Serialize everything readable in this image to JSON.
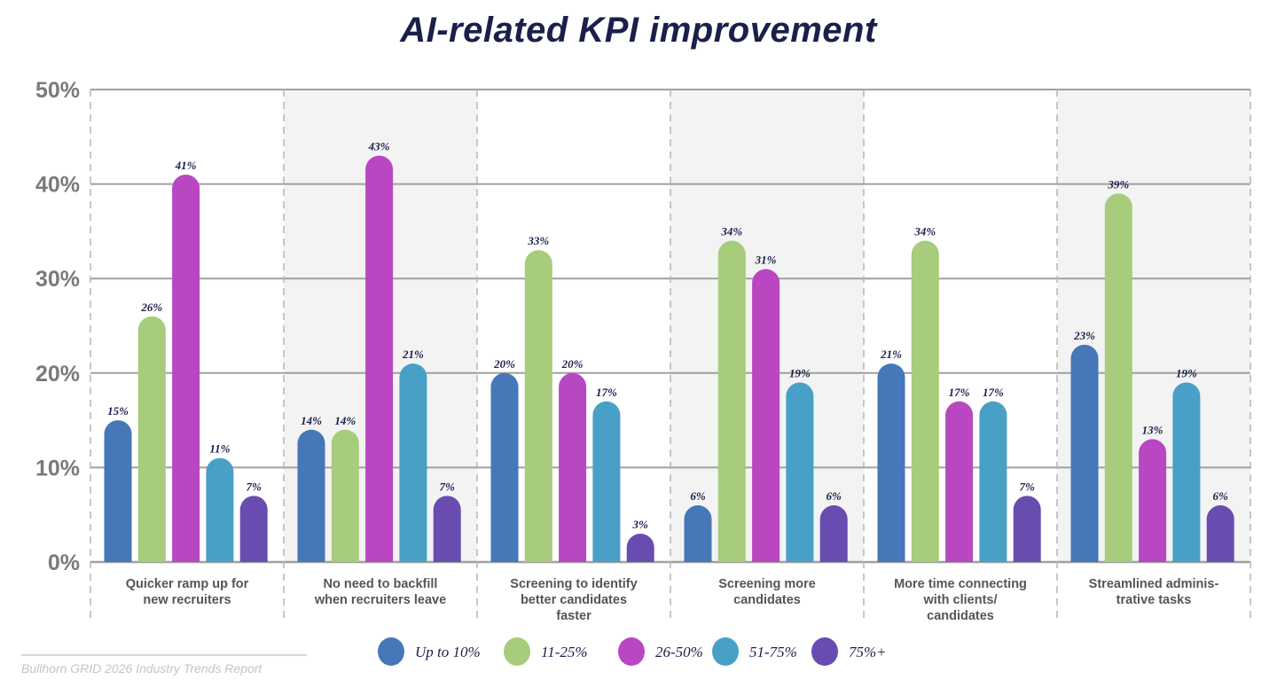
{
  "chart_data": {
    "type": "bar",
    "title": "AI-related KPI improvement",
    "categories": [
      [
        "Quicker ramp up for",
        "new recruiters"
      ],
      [
        "No need to backfill",
        "when recruiters leave"
      ],
      [
        "Screening to identify",
        "better candidates",
        "faster"
      ],
      [
        "Screening more",
        "candidates"
      ],
      [
        "More time connecting",
        "with clients/",
        "candidates"
      ],
      [
        "Streamlined adminis-",
        "trative tasks"
      ]
    ],
    "series": [
      {
        "name": "Up to 10%",
        "color": "#4677b8",
        "values": [
          15,
          14,
          20,
          6,
          21,
          23
        ]
      },
      {
        "name": "11-25%",
        "color": "#a6cc7c",
        "values": [
          26,
          14,
          33,
          34,
          34,
          39
        ]
      },
      {
        "name": "26-50%",
        "color": "#b847c1",
        "values": [
          41,
          43,
          20,
          31,
          17,
          13
        ]
      },
      {
        "name": "51-75%",
        "color": "#48a0c6",
        "values": [
          11,
          21,
          17,
          19,
          17,
          19
        ]
      },
      {
        "name": "75%+",
        "color": "#684cb0",
        "values": [
          7,
          7,
          3,
          6,
          7,
          6
        ]
      }
    ],
    "yticks": [
      "0%",
      "10%",
      "20%",
      "30%",
      "40%",
      "50%"
    ],
    "ylim": [
      0,
      50
    ],
    "unit": "%",
    "grid": true,
    "legend": "bottom",
    "alternating_group_shading": "#f3f3f3"
  },
  "source": "Bullhorn GRID 2026 Industry Trends Report"
}
